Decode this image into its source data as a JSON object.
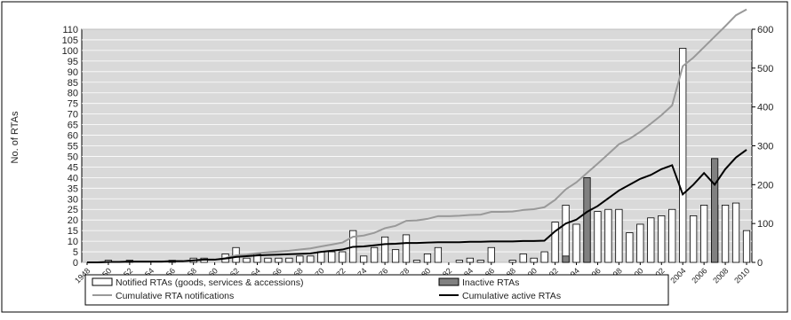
{
  "chart_data": {
    "type": "bar",
    "title": "",
    "ylabel": "No. of RTAs",
    "y2label": "",
    "ylim": [
      0,
      110
    ],
    "y2lim": [
      0,
      600
    ],
    "yticks": [
      "0",
      "5",
      "10",
      "15",
      "20",
      "25",
      "30",
      "35",
      "40",
      "45",
      "50",
      "55",
      "60",
      "65",
      "70",
      "75",
      "80",
      "85",
      "90",
      "95",
      "100",
      "105",
      "110"
    ],
    "y2ticks": [
      "0",
      "100",
      "200",
      "300",
      "400",
      "500",
      "600"
    ],
    "grid": true,
    "legend_position": "bottom",
    "years": [
      1948,
      1949,
      1950,
      1951,
      1952,
      1953,
      1954,
      1955,
      1956,
      1957,
      1958,
      1959,
      1960,
      1961,
      1962,
      1963,
      1964,
      1965,
      1966,
      1967,
      1968,
      1969,
      1970,
      1971,
      1972,
      1973,
      1974,
      1975,
      1976,
      1977,
      1978,
      1979,
      1980,
      1981,
      1982,
      1983,
      1984,
      1985,
      1986,
      1987,
      1988,
      1989,
      1990,
      1991,
      1992,
      1993,
      1994,
      1995,
      1996,
      1997,
      1998,
      1999,
      2000,
      2001,
      2002,
      2003,
      2004,
      2005,
      2006,
      2007,
      2008,
      2009,
      2010
    ],
    "xtick_labels": [
      "1948",
      "1950",
      "1952",
      "1954",
      "1956",
      "1958",
      "1960",
      "1962",
      "1964",
      "1966",
      "1968",
      "1970",
      "1972",
      "1974",
      "1976",
      "1978",
      "1980",
      "1982",
      "1984",
      "1986",
      "1988",
      "1990",
      "1992",
      "1994",
      "1996",
      "1998",
      "2000",
      "2002",
      "2004",
      "2006",
      "2008",
      "2010"
    ],
    "series": [
      {
        "name": "Notified RTAs (goods, services & accessions)",
        "kind": "bar",
        "axis": "left",
        "color": "#ffffff",
        "values": [
          0,
          0,
          1,
          0,
          1,
          0,
          0,
          0,
          1,
          0,
          2,
          2,
          0,
          4,
          7,
          2,
          4,
          2,
          2,
          2,
          3,
          3,
          5,
          5,
          5,
          15,
          3,
          7,
          12,
          6,
          13,
          1,
          4,
          7,
          0,
          1,
          2,
          1,
          7,
          0,
          1,
          4,
          2,
          5,
          19,
          27,
          18,
          24,
          24,
          25,
          25,
          14,
          18,
          21,
          22,
          25,
          101,
          22,
          27,
          27,
          27,
          28,
          15
        ]
      },
      {
        "name": "Inactive RTAs",
        "kind": "bar",
        "axis": "left",
        "color": "#808080",
        "values": [
          0,
          0,
          0,
          0,
          0,
          0,
          0,
          0,
          0,
          0,
          0,
          0,
          0,
          0,
          0,
          0,
          0,
          0,
          0,
          0,
          0,
          0,
          0,
          0,
          0,
          0,
          0,
          0,
          0,
          0,
          0,
          0,
          0,
          0,
          0,
          0,
          0,
          0,
          0,
          0,
          0,
          0,
          0,
          0,
          0,
          3,
          0,
          40,
          0,
          0,
          0,
          0,
          0,
          0,
          0,
          0,
          0,
          0,
          0,
          49,
          0,
          0,
          0
        ]
      },
      {
        "name": "Cumulative RTA notifications",
        "kind": "line",
        "axis": "right",
        "color": "#999999",
        "values": [
          0,
          0,
          1,
          1,
          2,
          2,
          2,
          2,
          3,
          3,
          5,
          7,
          7,
          11,
          18,
          20,
          24,
          26,
          28,
          30,
          33,
          36,
          41,
          46,
          51,
          66,
          69,
          76,
          88,
          94,
          107,
          108,
          112,
          119,
          119,
          120,
          122,
          123,
          130,
          130,
          131,
          135,
          137,
          142,
          161,
          188,
          206,
          230,
          254,
          279,
          304,
          318,
          336,
          357,
          379,
          404,
          505,
          527,
          554,
          581,
          608,
          636,
          651
        ]
      },
      {
        "name": "Cumulative active RTAs",
        "kind": "line",
        "axis": "right",
        "color": "#000000",
        "values": [
          0,
          0,
          1,
          1,
          2,
          2,
          2,
          2,
          3,
          3,
          5,
          7,
          7,
          10,
          14,
          16,
          18,
          19,
          20,
          21,
          22,
          23,
          27,
          30,
          33,
          40,
          41,
          44,
          47,
          48,
          50,
          50,
          51,
          52,
          52,
          52,
          53,
          53,
          54,
          54,
          54,
          55,
          55,
          56,
          80,
          100,
          110,
          130,
          145,
          165,
          185,
          200,
          215,
          225,
          240,
          250,
          175,
          200,
          230,
          200,
          240,
          270,
          290
        ]
      }
    ]
  },
  "legend": {
    "items": [
      {
        "label": "Notified RTAs (goods, services & accessions)",
        "swatch": "bar-white"
      },
      {
        "label": "Inactive RTAs",
        "swatch": "bar-grey"
      },
      {
        "label": "Cumulative RTA notifications",
        "swatch": "line-grey"
      },
      {
        "label": "Cumulative active RTAs",
        "swatch": "line-black"
      }
    ]
  }
}
